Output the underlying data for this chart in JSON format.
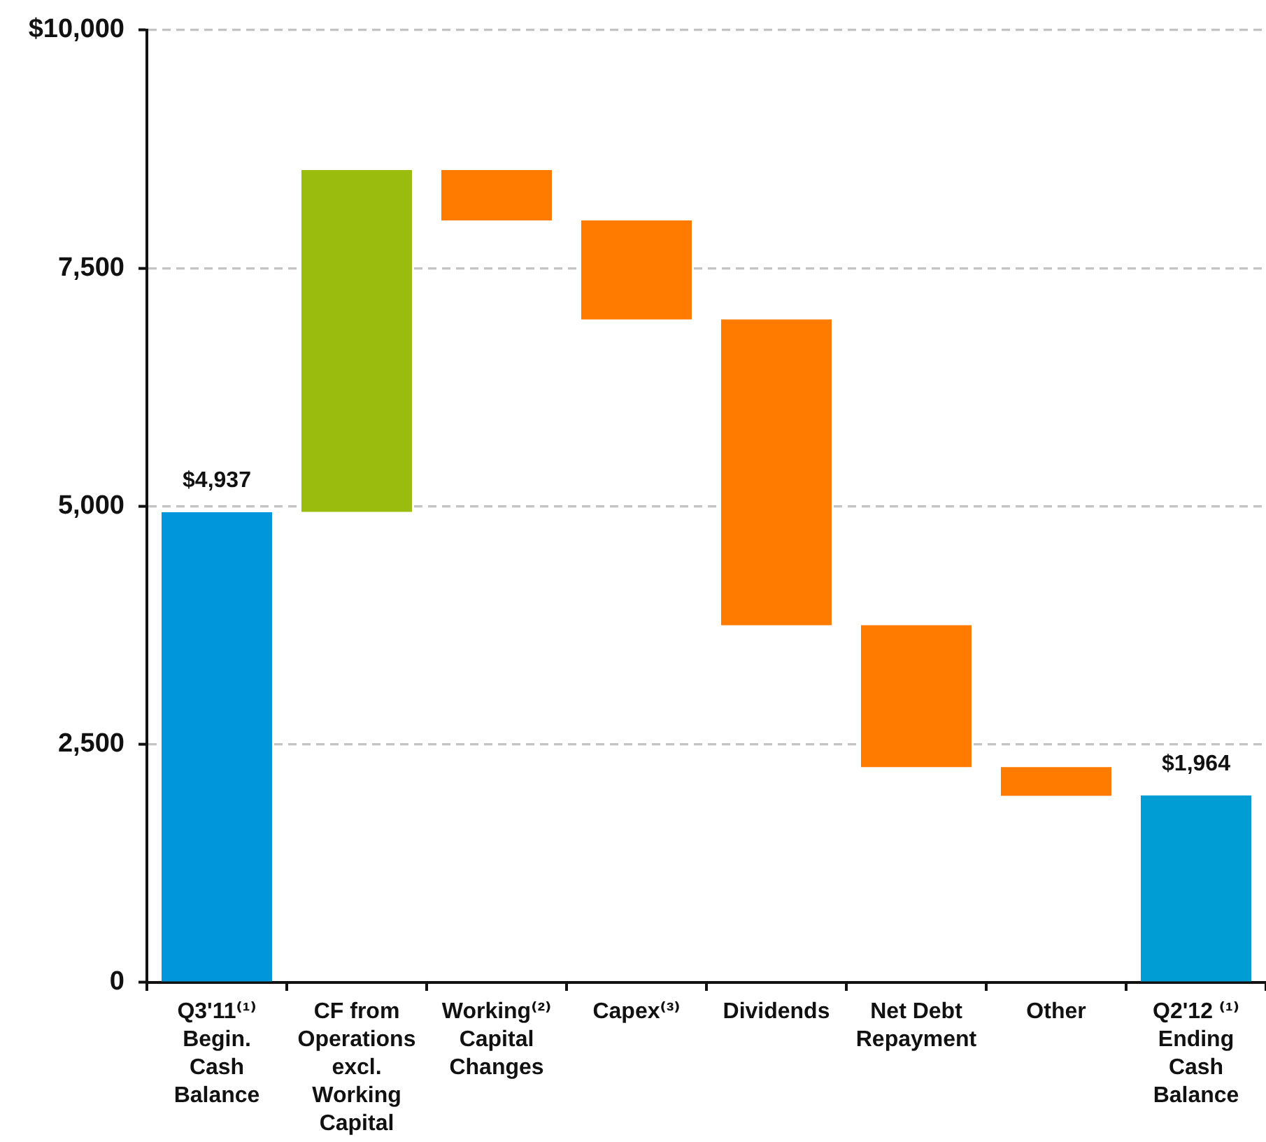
{
  "chart_data": {
    "type": "bar",
    "categories": [
      "Q3'11⁽¹⁾\nBegin.\nCash\nBalance",
      "CF from\nOperations\nexcl.\nWorking\nCapital",
      "Working⁽²⁾\nCapital\nChanges",
      "Capex⁽³⁾",
      "Dividends",
      "Net Debt\nRepayment",
      "Other",
      "Q2'12 ⁽¹⁾\nEnding\nCash\nBalance"
    ],
    "values": [
      4937,
      3590,
      -530,
      -1040,
      -3210,
      -1490,
      -300,
      1964
    ],
    "base": [
      0,
      4940,
      8530,
      8000,
      6960,
      3750,
      2260,
      0
    ],
    "colors": [
      "#0096db",
      "#99bc0f",
      "#ff7b00",
      "#ff7b00",
      "#ff7b00",
      "#ff7b00",
      "#ff7b00",
      "#009dd4"
    ],
    "value_labels": [
      "$4,937",
      null,
      null,
      null,
      null,
      null,
      null,
      "$1,964"
    ],
    "ylim": [
      0,
      10000
    ],
    "yticks": [
      0,
      {
        "value": 2500,
        "label": "2,500"
      },
      {
        "value": 5000,
        "label": "5,000"
      },
      {
        "value": 7500,
        "label": "7,500"
      },
      {
        "value": 10000,
        "label": "$10,000"
      }
    ],
    "grid": "y"
  }
}
